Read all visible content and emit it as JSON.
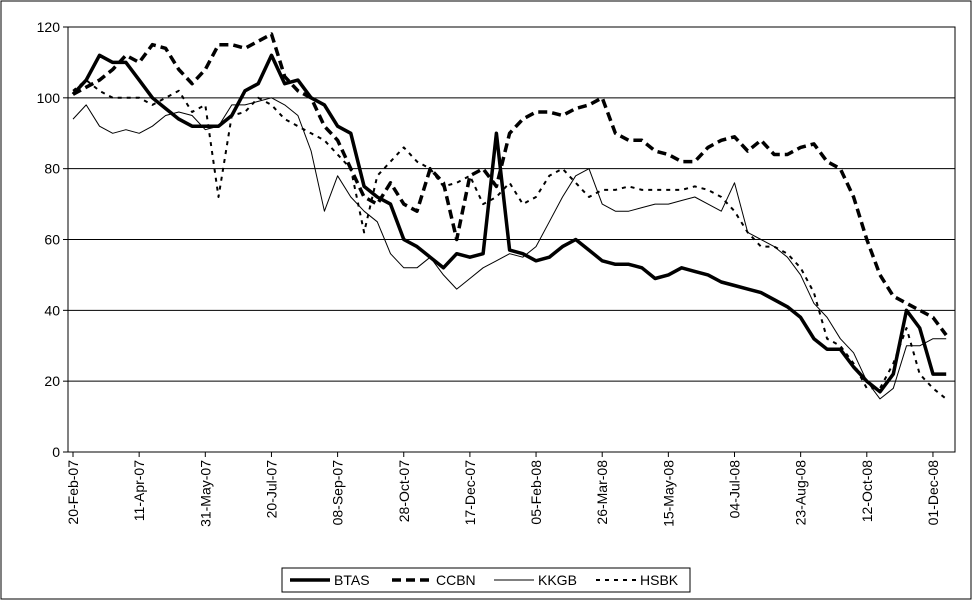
{
  "chart_data": {
    "type": "line",
    "categories": [
      "20-Feb-07",
      null,
      null,
      null,
      null,
      "11-Apr-07",
      null,
      null,
      null,
      null,
      "31-May-07",
      null,
      null,
      null,
      null,
      "20-Jul-07",
      null,
      null,
      null,
      null,
      "08-Sep-07",
      null,
      null,
      null,
      null,
      "28-Oct-07",
      null,
      null,
      null,
      null,
      "17-Dec-07",
      null,
      null,
      null,
      null,
      "05-Feb-08",
      null,
      null,
      null,
      null,
      "26-Mar-08",
      null,
      null,
      null,
      null,
      "15-May-08",
      null,
      null,
      null,
      null,
      "04-Jul-08",
      null,
      null,
      null,
      null,
      "23-Aug-08",
      null,
      null,
      null,
      null,
      "12-Oct-08",
      null,
      null,
      null,
      null,
      "01-Dec-08",
      null
    ],
    "series": [
      {
        "name": "BTAS",
        "color": "#000000",
        "line_width": 3.5,
        "dash": "solid",
        "values": [
          101,
          105,
          112,
          110,
          110,
          105,
          100,
          97,
          94,
          92,
          92,
          92,
          95,
          102,
          104,
          112,
          104,
          105,
          100,
          98,
          92,
          90,
          75,
          72,
          70,
          60,
          58,
          55,
          52,
          56,
          55,
          56,
          90,
          57,
          56,
          54,
          55,
          58,
          60,
          57,
          54,
          53,
          53,
          52,
          49,
          50,
          52,
          51,
          50,
          48,
          47,
          46,
          45,
          43,
          41,
          38,
          32,
          29,
          29,
          24,
          20,
          17,
          22,
          40,
          35,
          22,
          22
        ]
      },
      {
        "name": "CCBN",
        "color": "#000000",
        "line_width": 3.5,
        "dash": "dashed",
        "values": [
          101,
          103,
          105,
          108,
          112,
          110,
          115,
          114,
          108,
          104,
          108,
          115,
          115,
          114,
          116,
          118,
          106,
          102,
          100,
          92,
          88,
          80,
          72,
          70,
          76,
          70,
          68,
          80,
          76,
          60,
          78,
          80,
          75,
          90,
          94,
          96,
          96,
          95,
          97,
          98,
          100,
          90,
          88,
          88,
          85,
          84,
          82,
          82,
          86,
          88,
          89,
          85,
          88,
          84,
          84,
          86,
          87,
          82,
          80,
          72,
          60,
          50,
          44,
          42,
          40,
          38,
          33
        ]
      },
      {
        "name": "KKGB",
        "color": "#000000",
        "line_width": 1,
        "dash": "solid",
        "values": [
          94,
          98,
          92,
          90,
          91,
          90,
          92,
          95,
          96,
          95,
          91,
          92,
          98,
          98,
          99,
          100,
          98,
          95,
          85,
          68,
          78,
          72,
          68,
          65,
          56,
          52,
          52,
          55,
          50,
          46,
          49,
          52,
          54,
          56,
          55,
          58,
          65,
          72,
          78,
          80,
          70,
          68,
          68,
          69,
          70,
          70,
          71,
          72,
          70,
          68,
          76,
          62,
          60,
          58,
          55,
          50,
          42,
          38,
          32,
          28,
          20,
          15,
          18,
          30,
          30,
          32,
          32
        ]
      },
      {
        "name": "HSBK",
        "color": "#000000",
        "line_width": 2,
        "dash": "dotted",
        "values": [
          102,
          105,
          102,
          100,
          100,
          100,
          98,
          100,
          102,
          96,
          98,
          72,
          95,
          96,
          100,
          98,
          94,
          92,
          90,
          88,
          84,
          80,
          62,
          78,
          82,
          86,
          82,
          80,
          75,
          76,
          78,
          70,
          72,
          76,
          70,
          72,
          78,
          80,
          76,
          72,
          74,
          74,
          75,
          74,
          74,
          74,
          74,
          75,
          74,
          72,
          68,
          62,
          58,
          58,
          56,
          52,
          45,
          32,
          30,
          25,
          18,
          18,
          25,
          35,
          22,
          18,
          15
        ]
      }
    ],
    "ylim": [
      0,
      120
    ],
    "yticks": [
      0,
      20,
      40,
      60,
      80,
      100,
      120
    ],
    "grid": true,
    "legend": "bottom"
  }
}
